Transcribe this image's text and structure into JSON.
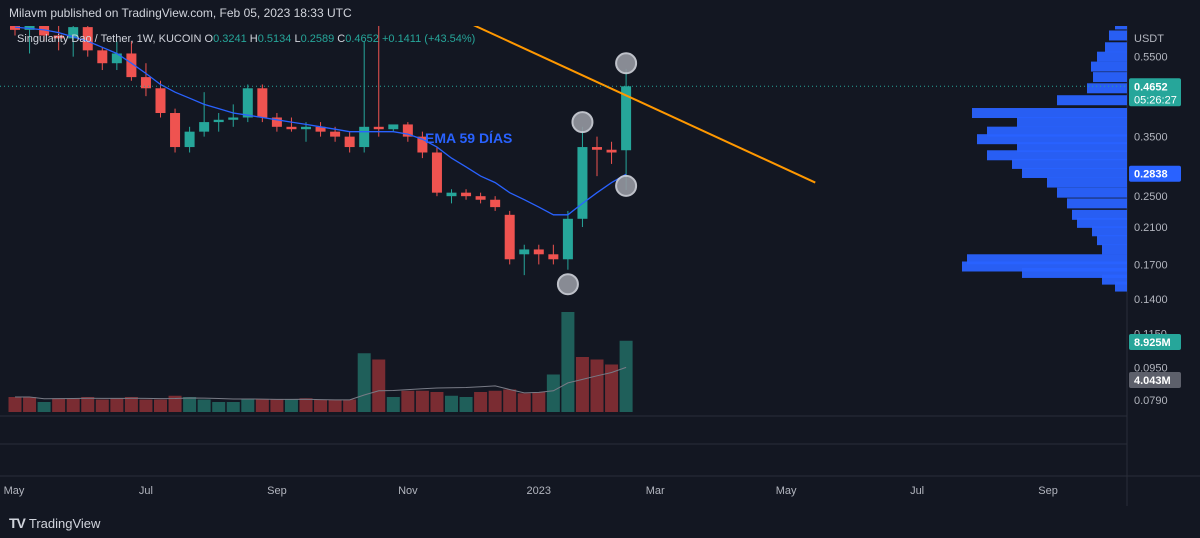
{
  "header": {
    "published": "Milavm published on TradingView.com, Feb 05, 2023 18:33 UTC"
  },
  "legend": {
    "symbol": "Singularity Dao / Tether, 1W, KUCOIN",
    "open_label": "O",
    "open": "0.3241",
    "high_label": "H",
    "high": "0.5134",
    "low_label": "L",
    "low": "0.2589",
    "close_label": "C",
    "close": "0.4652",
    "change": "+0.1411 (+43.54%)"
  },
  "footer": {
    "brand": "TradingView"
  },
  "chart_data": {
    "type": "candlestick",
    "annotation": "EMA 59 DÍAS",
    "currency_label": "USDT",
    "price_ticks": [
      "0.5500",
      "0.3500",
      "0.2500",
      "0.2100",
      "0.1700",
      "0.1400",
      "0.1150",
      "0.0950",
      "0.0790"
    ],
    "price_tags": [
      {
        "label": "0.4652",
        "sub": "05:26:27",
        "price": 0.4652,
        "color": "#26a69a"
      },
      {
        "label": "0.2838",
        "price": 0.2838,
        "color": "#2962ff"
      },
      {
        "label": "8.925M",
        "color": "#26a69a",
        "pane": "volume"
      },
      {
        "label": "4.043M",
        "color": "#5d606b",
        "pane": "volume"
      }
    ],
    "x_labels": [
      "May",
      "Jul",
      "Sep",
      "Nov",
      "2023",
      "Mar",
      "May",
      "Jul",
      "Sep"
    ],
    "x_label_weeks": [
      0,
      9,
      18,
      27,
      36,
      44,
      53,
      62,
      71
    ],
    "price_range": [
      0.079,
      0.7
    ],
    "log_scale": true,
    "candles": [
      {
        "o": 0.71,
        "h": 0.8,
        "l": 0.62,
        "c": 0.64
      },
      {
        "o": 0.64,
        "h": 0.7,
        "l": 0.56,
        "c": 0.67
      },
      {
        "o": 0.67,
        "h": 0.72,
        "l": 0.6,
        "c": 0.62
      },
      {
        "o": 0.62,
        "h": 0.66,
        "l": 0.57,
        "c": 0.61
      },
      {
        "o": 0.61,
        "h": 0.66,
        "l": 0.55,
        "c": 0.65
      },
      {
        "o": 0.65,
        "h": 0.7,
        "l": 0.55,
        "c": 0.57
      },
      {
        "o": 0.57,
        "h": 0.58,
        "l": 0.51,
        "c": 0.53
      },
      {
        "o": 0.53,
        "h": 0.6,
        "l": 0.51,
        "c": 0.56
      },
      {
        "o": 0.56,
        "h": 0.6,
        "l": 0.48,
        "c": 0.49
      },
      {
        "o": 0.49,
        "h": 0.53,
        "l": 0.44,
        "c": 0.46
      },
      {
        "o": 0.46,
        "h": 0.48,
        "l": 0.39,
        "c": 0.4
      },
      {
        "o": 0.4,
        "h": 0.41,
        "l": 0.32,
        "c": 0.33
      },
      {
        "o": 0.33,
        "h": 0.37,
        "l": 0.32,
        "c": 0.36
      },
      {
        "o": 0.36,
        "h": 0.45,
        "l": 0.35,
        "c": 0.38
      },
      {
        "o": 0.38,
        "h": 0.4,
        "l": 0.36,
        "c": 0.385
      },
      {
        "o": 0.385,
        "h": 0.42,
        "l": 0.37,
        "c": 0.39
      },
      {
        "o": 0.39,
        "h": 0.47,
        "l": 0.38,
        "c": 0.46
      },
      {
        "o": 0.46,
        "h": 0.47,
        "l": 0.38,
        "c": 0.39
      },
      {
        "o": 0.39,
        "h": 0.4,
        "l": 0.36,
        "c": 0.37
      },
      {
        "o": 0.37,
        "h": 0.39,
        "l": 0.36,
        "c": 0.365
      },
      {
        "o": 0.365,
        "h": 0.38,
        "l": 0.34,
        "c": 0.37
      },
      {
        "o": 0.37,
        "h": 0.38,
        "l": 0.35,
        "c": 0.36
      },
      {
        "o": 0.36,
        "h": 0.37,
        "l": 0.34,
        "c": 0.35
      },
      {
        "o": 0.35,
        "h": 0.36,
        "l": 0.32,
        "c": 0.33
      },
      {
        "o": 0.33,
        "h": 0.6,
        "l": 0.32,
        "c": 0.37
      },
      {
        "o": 0.37,
        "h": 0.72,
        "l": 0.35,
        "c": 0.365
      },
      {
        "o": 0.365,
        "h": 0.37,
        "l": 0.36,
        "c": 0.375
      },
      {
        "o": 0.375,
        "h": 0.38,
        "l": 0.34,
        "c": 0.35
      },
      {
        "o": 0.35,
        "h": 0.36,
        "l": 0.31,
        "c": 0.32
      },
      {
        "o": 0.32,
        "h": 0.33,
        "l": 0.25,
        "c": 0.255
      },
      {
        "o": 0.25,
        "h": 0.26,
        "l": 0.24,
        "c": 0.255
      },
      {
        "o": 0.255,
        "h": 0.26,
        "l": 0.245,
        "c": 0.25
      },
      {
        "o": 0.25,
        "h": 0.255,
        "l": 0.24,
        "c": 0.245
      },
      {
        "o": 0.245,
        "h": 0.25,
        "l": 0.23,
        "c": 0.235
      },
      {
        "o": 0.225,
        "h": 0.23,
        "l": 0.17,
        "c": 0.175
      },
      {
        "o": 0.18,
        "h": 0.19,
        "l": 0.16,
        "c": 0.185
      },
      {
        "o": 0.185,
        "h": 0.19,
        "l": 0.17,
        "c": 0.18
      },
      {
        "o": 0.18,
        "h": 0.19,
        "l": 0.17,
        "c": 0.175
      },
      {
        "o": 0.175,
        "h": 0.23,
        "l": 0.165,
        "c": 0.22
      },
      {
        "o": 0.22,
        "h": 0.37,
        "l": 0.21,
        "c": 0.33
      },
      {
        "o": 0.33,
        "h": 0.35,
        "l": 0.28,
        "c": 0.325
      },
      {
        "o": 0.325,
        "h": 0.34,
        "l": 0.3,
        "c": 0.32
      },
      {
        "o": 0.3241,
        "h": 0.5134,
        "l": 0.2589,
        "c": 0.4652
      }
    ],
    "ema": [
      0.65,
      0.645,
      0.64,
      0.63,
      0.615,
      0.6,
      0.58,
      0.56,
      0.53,
      0.5,
      0.47,
      0.45,
      0.435,
      0.42,
      0.41,
      0.4,
      0.395,
      0.39,
      0.385,
      0.38,
      0.375,
      0.37,
      0.365,
      0.36,
      0.36,
      0.36,
      0.36,
      0.355,
      0.345,
      0.33,
      0.31,
      0.295,
      0.28,
      0.27,
      0.255,
      0.245,
      0.235,
      0.225,
      0.225,
      0.24,
      0.255,
      0.27,
      0.283
    ],
    "trendline": {
      "from": {
        "week": 27,
        "price": 0.78
      },
      "to": {
        "week": 55,
        "price": 0.27
      }
    },
    "markers": [
      {
        "week": 42,
        "price": 0.53
      },
      {
        "week": 39,
        "price": 0.38
      },
      {
        "week": 42,
        "price": 0.265
      },
      {
        "week": 38,
        "price": 0.152
      }
    ],
    "volume": [
      {
        "v": 1.2,
        "up": false
      },
      {
        "v": 1.2,
        "up": false
      },
      {
        "v": 0.8,
        "up": true
      },
      {
        "v": 1.1,
        "up": false
      },
      {
        "v": 1.1,
        "up": false
      },
      {
        "v": 1.2,
        "up": false
      },
      {
        "v": 1.0,
        "up": false
      },
      {
        "v": 1.1,
        "up": false
      },
      {
        "v": 1.2,
        "up": false
      },
      {
        "v": 1.0,
        "up": false
      },
      {
        "v": 1.0,
        "up": false
      },
      {
        "v": 1.3,
        "up": false
      },
      {
        "v": 1.2,
        "up": true
      },
      {
        "v": 1.0,
        "up": true
      },
      {
        "v": 0.8,
        "up": true
      },
      {
        "v": 0.8,
        "up": true
      },
      {
        "v": 1.0,
        "up": true
      },
      {
        "v": 1.0,
        "up": false
      },
      {
        "v": 1.0,
        "up": false
      },
      {
        "v": 1.0,
        "up": true
      },
      {
        "v": 1.1,
        "up": false
      },
      {
        "v": 1.0,
        "up": false
      },
      {
        "v": 1.0,
        "up": false
      },
      {
        "v": 1.0,
        "up": false
      },
      {
        "v": 4.7,
        "up": true
      },
      {
        "v": 4.2,
        "up": false
      },
      {
        "v": 1.2,
        "up": true
      },
      {
        "v": 1.7,
        "up": false
      },
      {
        "v": 1.7,
        "up": false
      },
      {
        "v": 1.6,
        "up": false
      },
      {
        "v": 1.3,
        "up": true
      },
      {
        "v": 1.2,
        "up": true
      },
      {
        "v": 1.6,
        "up": false
      },
      {
        "v": 1.7,
        "up": false
      },
      {
        "v": 1.8,
        "up": false
      },
      {
        "v": 1.5,
        "up": false
      },
      {
        "v": 1.6,
        "up": false
      },
      {
        "v": 3.0,
        "up": true
      },
      {
        "v": 8.0,
        "up": true
      },
      {
        "v": 4.4,
        "up": false
      },
      {
        "v": 4.2,
        "up": false
      },
      {
        "v": 3.8,
        "up": false
      },
      {
        "v": 5.7,
        "up": true
      }
    ],
    "volume_profile": [
      {
        "price": 0.66,
        "w": 12
      },
      {
        "price": 0.62,
        "w": 18
      },
      {
        "price": 0.58,
        "w": 22
      },
      {
        "price": 0.55,
        "w": 30
      },
      {
        "price": 0.52,
        "w": 36
      },
      {
        "price": 0.49,
        "w": 34
      },
      {
        "price": 0.46,
        "w": 40
      },
      {
        "price": 0.43,
        "w": 70
      },
      {
        "price": 0.4,
        "w": 155
      },
      {
        "price": 0.38,
        "w": 110
      },
      {
        "price": 0.36,
        "w": 140
      },
      {
        "price": 0.345,
        "w": 150
      },
      {
        "price": 0.33,
        "w": 110
      },
      {
        "price": 0.315,
        "w": 140
      },
      {
        "price": 0.3,
        "w": 115
      },
      {
        "price": 0.285,
        "w": 105
      },
      {
        "price": 0.27,
        "w": 80
      },
      {
        "price": 0.255,
        "w": 70
      },
      {
        "price": 0.24,
        "w": 60
      },
      {
        "price": 0.225,
        "w": 55
      },
      {
        "price": 0.215,
        "w": 50
      },
      {
        "price": 0.205,
        "w": 35
      },
      {
        "price": 0.195,
        "w": 30
      },
      {
        "price": 0.185,
        "w": 25
      },
      {
        "price": 0.175,
        "w": 160
      },
      {
        "price": 0.168,
        "w": 165
      },
      {
        "price": 0.162,
        "w": 105
      },
      {
        "price": 0.156,
        "w": 25
      },
      {
        "price": 0.15,
        "w": 12
      }
    ]
  }
}
